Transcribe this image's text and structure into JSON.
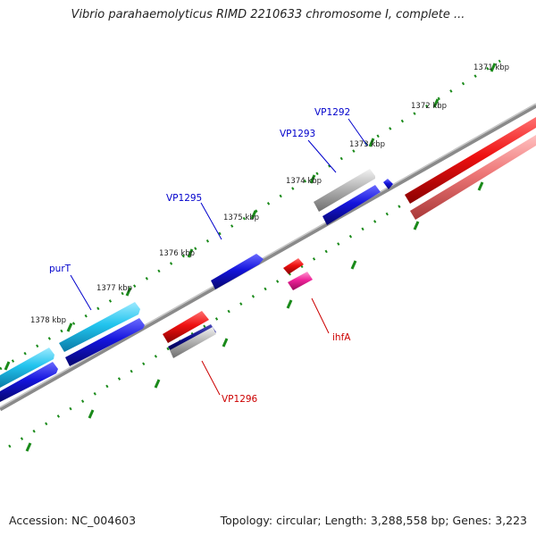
{
  "title": "Vibrio parahaemolyticus RIMD 2210633 chromosome I, complete ...",
  "footer": {
    "accession": "Accession: NC_004603",
    "topology": "Topology: circular; Length: 3,288,558 bp; Genes: 3,223"
  },
  "colors": {
    "backbone": "#8a8a8a",
    "tick": "#1a8a1a",
    "label_forward": "#0000cc",
    "label_reverse": "#cc0000",
    "blue": "#1414dd",
    "cyan": "#22c4ee",
    "red": "#ee1010",
    "salmon": "#ee7777",
    "gray": "#b4b4b4",
    "navy": "#0a0a88",
    "pink": "#ee2299"
  },
  "kbp_labels": [
    "1371 kbp",
    "1372 kbp",
    "1373 kbp",
    "1374 kbp",
    "1375 kbp",
    "1376 kbp",
    "1377 kbp",
    "1378 kbp"
  ],
  "gene_labels": {
    "vp1292": "VP1292",
    "vp1293": "VP1293",
    "vp1295": "VP1295",
    "purT": "purT",
    "ihfA": "ihfA",
    "vp1296": "VP1296"
  }
}
